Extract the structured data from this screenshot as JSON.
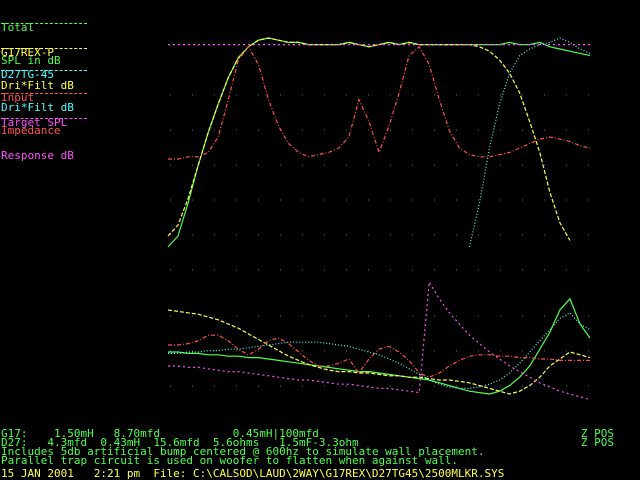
{
  "legend": [
    {
      "key": "total",
      "line1": "Total",
      "line2": "SPL in dB",
      "color": "#50ff50"
    },
    {
      "key": "woofer",
      "line1": "G17REX-P",
      "line2": "Dri*Filt dB",
      "color": "#ffff50"
    },
    {
      "key": "tweeter",
      "line1": "D27TG-45",
      "line2": "Dri*Filt dB",
      "color": "#50ffff"
    },
    {
      "key": "impedance",
      "line1": "Input",
      "line2": "Impedance",
      "color": "#ff5050"
    },
    {
      "key": "target",
      "line1": "Target SPL",
      "line2": "Response dB",
      "color": "#ff50ff"
    }
  ],
  "footer": {
    "line1": "G17:    1.50mH   8.70mfd           0.45mH|100mfd",
    "line1_right": "Z POS",
    "line2": "D27:   4.3mfd  0.43mH  15.6mfd  5.6ohms   1.5mF-3.3ohm",
    "line2_right": "Z POS",
    "line3": "Includes 5db artificial bump centered @ 600hz to simulate wall placement.",
    "line4": "Parallel trap circuit is used on woofer to flatten when against wall.",
    "line5": "15 JAN 2001   2:21 pm  File: C:\\CALSOD\\LAUD\\2WAY\\G17REX\\D27TG45\\2500MLKR.SYS"
  },
  "chart_data": [
    {
      "type": "line",
      "panel": "magnitude",
      "x_index": [
        0,
        1,
        2,
        3,
        4,
        5,
        6,
        7,
        8,
        9,
        10,
        11,
        12,
        13,
        14,
        15,
        16,
        17,
        18,
        19,
        20,
        21,
        22,
        23,
        24,
        25,
        26,
        27,
        28,
        29,
        30,
        31,
        32,
        33,
        34,
        35,
        36,
        37,
        38,
        39,
        40,
        41,
        42
      ],
      "series": [
        {
          "key": "total",
          "values": [
            5,
            10,
            25,
            42,
            57,
            70,
            82,
            91,
            96,
            99,
            100,
            99,
            98,
            98,
            97,
            97,
            97,
            97,
            98,
            97,
            96,
            97,
            98,
            97,
            98,
            97,
            97,
            97,
            97,
            97,
            97,
            97,
            97,
            97,
            98,
            97,
            97,
            98,
            96,
            95,
            94,
            93,
            92
          ],
          "marks": [
            [
              19,
              102
            ],
            [
              19.5,
              92
            ],
            [
              20.5,
              100
            ]
          ]
        },
        {
          "key": "woofer",
          "values": [
            10,
            15,
            27,
            42,
            57,
            70,
            82,
            91,
            96,
            99,
            100,
            99,
            98,
            98,
            97,
            97,
            97,
            97,
            98,
            97,
            96,
            97,
            98,
            97,
            98,
            97,
            97,
            97,
            97,
            97,
            97,
            96,
            94,
            90,
            84,
            75,
            62,
            48,
            30,
            16,
            8,
            null,
            null
          ]
        },
        {
          "key": "tweeter",
          "values": [
            null,
            null,
            null,
            null,
            null,
            null,
            null,
            null,
            null,
            null,
            null,
            null,
            null,
            null,
            null,
            null,
            null,
            null,
            null,
            null,
            null,
            null,
            null,
            null,
            null,
            null,
            null,
            null,
            null,
            null,
            5,
            25,
            50,
            70,
            84,
            92,
            95,
            97,
            98,
            100,
            98,
            95,
            93
          ]
        },
        {
          "key": "impedance",
          "values": [
            45,
            45,
            46,
            46,
            48,
            55,
            72,
            90,
            96,
            88,
            72,
            60,
            52,
            48,
            46,
            47,
            48,
            50,
            55,
            72,
            62,
            48,
            60,
            75,
            92,
            96,
            88,
            72,
            58,
            50,
            47,
            46,
            46,
            47,
            48,
            50,
            52,
            54,
            55,
            54,
            53,
            51,
            50
          ]
        },
        {
          "key": "target",
          "values": [
            97,
            97,
            97,
            97,
            97,
            97,
            97,
            97,
            97,
            97,
            97,
            97,
            97,
            97,
            97,
            97,
            97,
            97,
            97,
            97,
            97,
            97,
            97,
            97,
            97,
            97,
            97,
            97,
            97,
            97,
            97,
            97,
            97,
            97,
            97,
            97,
            97,
            97,
            97,
            97,
            97,
            97,
            97
          ]
        }
      ]
    },
    {
      "type": "line",
      "panel": "phase",
      "x_index": [
        0,
        1,
        2,
        3,
        4,
        5,
        6,
        7,
        8,
        9,
        10,
        11,
        12,
        13,
        14,
        15,
        16,
        17,
        18,
        19,
        20,
        21,
        22,
        23,
        24,
        25,
        26,
        27,
        28,
        29,
        30,
        31,
        32,
        33,
        34,
        35,
        36,
        37,
        38,
        39,
        40,
        41,
        42
      ],
      "series": [
        {
          "key": "total",
          "values": [
            50,
            50,
            49,
            49,
            48,
            48,
            47,
            47,
            46,
            46,
            45,
            44,
            43,
            42,
            41,
            40,
            39,
            38,
            37,
            36,
            36,
            35,
            34,
            33,
            32,
            31,
            30,
            28,
            26,
            24,
            22,
            21,
            20,
            22,
            26,
            32,
            40,
            52,
            64,
            80,
            88,
            70,
            60
          ]
        },
        {
          "key": "woofer",
          "values": [
            80,
            79,
            78,
            77,
            75,
            73,
            70,
            67,
            63,
            59,
            55,
            51,
            47,
            44,
            41,
            39,
            37,
            36,
            36,
            35,
            35,
            34,
            33,
            33,
            32,
            32,
            31,
            30,
            30,
            29,
            28,
            26,
            24,
            22,
            20,
            22,
            26,
            32,
            40,
            45,
            50,
            48,
            46
          ]
        },
        {
          "key": "tweeter",
          "values": [
            49,
            49,
            50,
            50,
            51,
            51,
            52,
            52,
            53,
            54,
            55,
            56,
            57,
            57,
            57,
            57,
            56,
            55,
            54,
            52,
            50,
            48,
            45,
            42,
            38,
            34,
            30,
            27,
            25,
            24,
            24,
            25,
            27,
            30,
            35,
            42,
            50,
            58,
            66,
            74,
            78,
            70,
            66
          ]
        },
        {
          "key": "impedance",
          "values": [
            55,
            55,
            56,
            58,
            62,
            62,
            58,
            52,
            48,
            52,
            58,
            60,
            56,
            50,
            44,
            40,
            40,
            42,
            45,
            35,
            45,
            52,
            54,
            50,
            44,
            35,
            32,
            35,
            40,
            44,
            47,
            48,
            48,
            47,
            47,
            46,
            46,
            45,
            45,
            44,
            44,
            44,
            44
          ]
        },
        {
          "key": "target",
          "values": [
            40,
            40,
            39,
            39,
            38,
            37,
            36,
            36,
            35,
            34,
            33,
            32,
            31,
            30,
            30,
            29,
            28,
            27,
            27,
            26,
            25,
            24,
            24,
            23,
            22,
            21,
            100,
            88,
            78,
            70,
            62,
            56,
            50,
            45,
            40,
            36,
            32,
            28,
            25,
            22,
            20,
            18,
            16
          ]
        }
      ]
    }
  ]
}
